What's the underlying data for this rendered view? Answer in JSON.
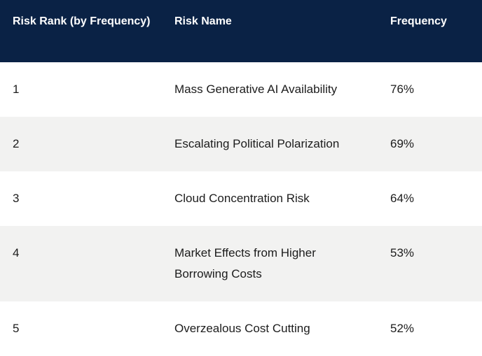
{
  "table": {
    "headers": {
      "rank": "Risk Rank (by Frequency)",
      "name": "Risk Name",
      "frequency": "Frequency"
    },
    "rows": [
      {
        "rank": "1",
        "name": "Mass Generative AI Availability",
        "frequency": "76%"
      },
      {
        "rank": "2",
        "name": "Escalating Political Polarization",
        "frequency": "69%"
      },
      {
        "rank": "3",
        "name": "Cloud Concentration Risk",
        "frequency": "64%"
      },
      {
        "rank": "4",
        "name": "Market Effects from Higher Borrowing Costs",
        "frequency": "53%"
      },
      {
        "rank": "5",
        "name": "Overzealous Cost Cutting",
        "frequency": "52%"
      }
    ]
  },
  "colors": {
    "header_bg": "#0A2245",
    "header_text": "#FFFFFF",
    "row_bg": "#FFFFFF",
    "row_alt_bg": "#F2F2F1",
    "body_text": "#1C1C1C"
  },
  "chart_data": {
    "type": "table",
    "columns": [
      "Risk Rank (by Frequency)",
      "Risk Name",
      "Frequency"
    ],
    "rows": [
      [
        "1",
        "Mass Generative AI Availability",
        "76%"
      ],
      [
        "2",
        "Escalating Political Polarization",
        "69%"
      ],
      [
        "3",
        "Cloud Concentration Risk",
        "64%"
      ],
      [
        "4",
        "Market Effects from Higher Borrowing Costs",
        "53%"
      ],
      [
        "5",
        "Overzealous Cost Cutting",
        "52%"
      ]
    ]
  }
}
